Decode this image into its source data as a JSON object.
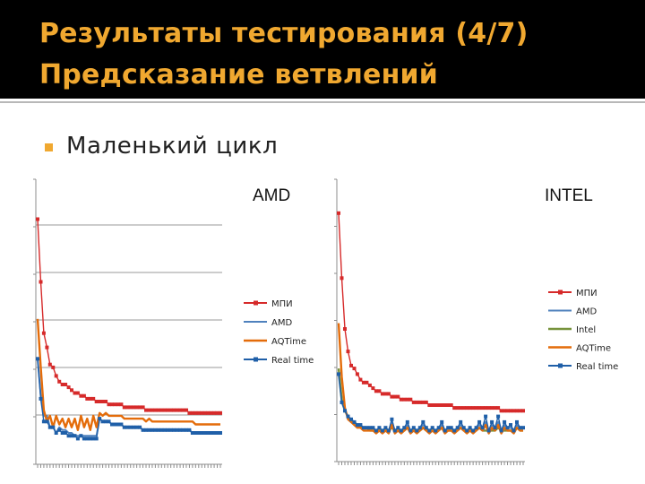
{
  "slide": {
    "title_line_1": "Результаты тестирования (4/7)",
    "title_line_2": "Предсказание ветвлений",
    "bullet": "Маленький цикл",
    "title_color": "#f0a830",
    "bullet_color": "#f0a830"
  },
  "chart_data": [
    {
      "type": "line",
      "title": "AMD",
      "xlabel": "",
      "ylabel": "",
      "grid": true,
      "legend_position": "right",
      "y_tick_labels_visible": false,
      "x_tick_labels_visible": false,
      "ylim": [
        0,
        100
      ],
      "x": [
        1,
        2,
        3,
        4,
        5,
        6,
        7,
        8,
        9,
        10,
        11,
        12,
        13,
        14,
        15,
        16,
        17,
        18,
        19,
        20,
        21,
        22,
        23,
        24,
        25,
        26,
        27,
        28,
        29,
        30,
        31,
        32,
        33,
        34,
        35,
        36,
        37,
        38,
        39,
        40,
        41,
        42,
        43,
        44,
        45,
        46,
        47,
        48,
        49,
        50,
        51,
        52,
        53,
        54,
        55,
        56,
        57,
        58,
        59,
        60
      ],
      "series": [
        {
          "name": "МПИ",
          "color": "#d62a2a",
          "marker": "square",
          "values": [
            86,
            64,
            46,
            41,
            35,
            34,
            31,
            29,
            28,
            28,
            27,
            26,
            25,
            25,
            24,
            24,
            23,
            23,
            23,
            22,
            22,
            22,
            22,
            21,
            21,
            21,
            21,
            21,
            20,
            20,
            20,
            20,
            20,
            20,
            20,
            19,
            19,
            19,
            19,
            19,
            19,
            19,
            19,
            19,
            19,
            19,
            19,
            19,
            19,
            18,
            18,
            18,
            18,
            18,
            18,
            18,
            18,
            18,
            18,
            18
          ]
        },
        {
          "name": "AMD",
          "color": "#4f81bd",
          "marker": "none",
          "values": [
            37,
            24,
            17,
            17,
            13,
            13,
            11,
            13,
            12,
            12,
            11,
            11,
            10,
            10,
            10,
            10,
            10,
            10,
            10,
            10,
            16,
            15,
            15,
            15,
            14,
            14,
            14,
            14,
            13,
            13,
            13,
            13,
            13,
            13,
            12,
            12,
            12,
            12,
            12,
            12,
            12,
            12,
            12,
            12,
            12,
            12,
            12,
            12,
            12,
            12,
            11,
            11,
            11,
            11,
            11,
            11,
            11,
            11,
            11,
            11
          ]
        },
        {
          "name": "AQTime",
          "color": "#e46c0a",
          "marker": "none",
          "values": [
            51,
            34,
            19,
            15,
            17,
            13,
            17,
            14,
            16,
            13,
            16,
            13,
            16,
            12,
            17,
            13,
            16,
            12,
            17,
            13,
            18,
            17,
            18,
            17,
            17,
            17,
            17,
            17,
            16,
            16,
            16,
            16,
            16,
            16,
            16,
            15,
            16,
            15,
            15,
            15,
            15,
            15,
            15,
            15,
            15,
            15,
            15,
            15,
            15,
            15,
            15,
            14,
            14,
            14,
            14,
            14,
            14,
            14,
            14,
            14
          ]
        },
        {
          "name": "Real time",
          "color": "#1f5fa8",
          "marker": "square",
          "values": [
            37,
            23,
            15,
            15,
            13,
            13,
            11,
            12,
            11,
            11,
            10,
            10,
            10,
            9,
            10,
            9,
            9,
            9,
            9,
            9,
            16,
            15,
            15,
            15,
            14,
            14,
            14,
            14,
            13,
            13,
            13,
            13,
            13,
            13,
            12,
            12,
            12,
            12,
            12,
            12,
            12,
            12,
            12,
            12,
            12,
            12,
            12,
            12,
            12,
            12,
            11,
            11,
            11,
            11,
            11,
            11,
            11,
            11,
            11,
            11
          ]
        }
      ]
    },
    {
      "type": "line",
      "title": "INTEL",
      "xlabel": "",
      "ylabel": "",
      "grid": false,
      "legend_position": "right",
      "y_tick_labels_visible": false,
      "x_tick_labels_visible": false,
      "ylim": [
        0,
        100
      ],
      "x": [
        1,
        2,
        3,
        4,
        5,
        6,
        7,
        8,
        9,
        10,
        11,
        12,
        13,
        14,
        15,
        16,
        17,
        18,
        19,
        20,
        21,
        22,
        23,
        24,
        25,
        26,
        27,
        28,
        29,
        30,
        31,
        32,
        33,
        34,
        35,
        36,
        37,
        38,
        39,
        40,
        41,
        42,
        43,
        44,
        45,
        46,
        47,
        48,
        49,
        50,
        51,
        52,
        53,
        54,
        55,
        56,
        57,
        58,
        59,
        60
      ],
      "series": [
        {
          "name": "МПИ",
          "color": "#d62a2a",
          "marker": "square",
          "values": [
            88,
            65,
            47,
            39,
            34,
            33,
            31,
            29,
            28,
            28,
            27,
            26,
            25,
            25,
            24,
            24,
            24,
            23,
            23,
            23,
            22,
            22,
            22,
            22,
            21,
            21,
            21,
            21,
            21,
            20,
            20,
            20,
            20,
            20,
            20,
            20,
            20,
            19,
            19,
            19,
            19,
            19,
            19,
            19,
            19,
            19,
            19,
            19,
            19,
            19,
            19,
            19,
            18,
            18,
            18,
            18,
            18,
            18,
            18,
            18
          ]
        },
        {
          "name": "AMD",
          "color": "#4f81bd",
          "marker": "none",
          "values": [
            31,
            21,
            18,
            16,
            15,
            14,
            13,
            13,
            12,
            12,
            12,
            12,
            11,
            12,
            11,
            12,
            11,
            14,
            11,
            12,
            11,
            12,
            13,
            11,
            12,
            11,
            12,
            13,
            12,
            11,
            12,
            11,
            12,
            13,
            11,
            12,
            12,
            11,
            12,
            13,
            12,
            11,
            12,
            11,
            12,
            13,
            12,
            14,
            11,
            13,
            12,
            14,
            11,
            13,
            12,
            12,
            11,
            13,
            12,
            12
          ]
        },
        {
          "name": "Intel",
          "color": "#77933c",
          "marker": "none",
          "values": [
            33,
            22,
            18,
            16,
            14,
            14,
            13,
            12,
            12,
            12,
            11,
            11,
            11,
            11,
            11,
            11,
            11,
            12,
            11,
            11,
            11,
            11,
            12,
            11,
            11,
            11,
            11,
            12,
            11,
            11,
            11,
            11,
            11,
            12,
            11,
            11,
            11,
            11,
            11,
            12,
            11,
            11,
            11,
            11,
            11,
            12,
            11,
            11,
            11,
            11,
            11,
            12,
            11,
            11,
            11,
            11,
            11,
            12,
            11,
            11
          ]
        },
        {
          "name": "AQTime",
          "color": "#e46c0a",
          "marker": "none",
          "values": [
            49,
            30,
            19,
            15,
            14,
            13,
            12,
            12,
            11,
            11,
            11,
            11,
            10,
            11,
            10,
            11,
            10,
            13,
            10,
            11,
            10,
            11,
            12,
            10,
            11,
            10,
            11,
            12,
            11,
            10,
            11,
            10,
            11,
            12,
            10,
            11,
            11,
            10,
            11,
            12,
            11,
            10,
            11,
            10,
            11,
            12,
            11,
            13,
            10,
            12,
            11,
            13,
            10,
            12,
            11,
            11,
            10,
            12,
            11,
            11
          ]
        },
        {
          "name": "Real time",
          "color": "#1f5fa8",
          "marker": "square",
          "values": [
            31,
            21,
            18,
            16,
            15,
            14,
            13,
            13,
            12,
            12,
            12,
            12,
            11,
            12,
            11,
            12,
            11,
            15,
            11,
            12,
            11,
            12,
            14,
            11,
            12,
            11,
            12,
            14,
            12,
            11,
            12,
            11,
            12,
            14,
            11,
            12,
            12,
            11,
            12,
            14,
            12,
            11,
            12,
            11,
            12,
            14,
            12,
            16,
            11,
            14,
            12,
            16,
            11,
            14,
            12,
            13,
            11,
            14,
            12,
            12
          ]
        }
      ]
    }
  ]
}
